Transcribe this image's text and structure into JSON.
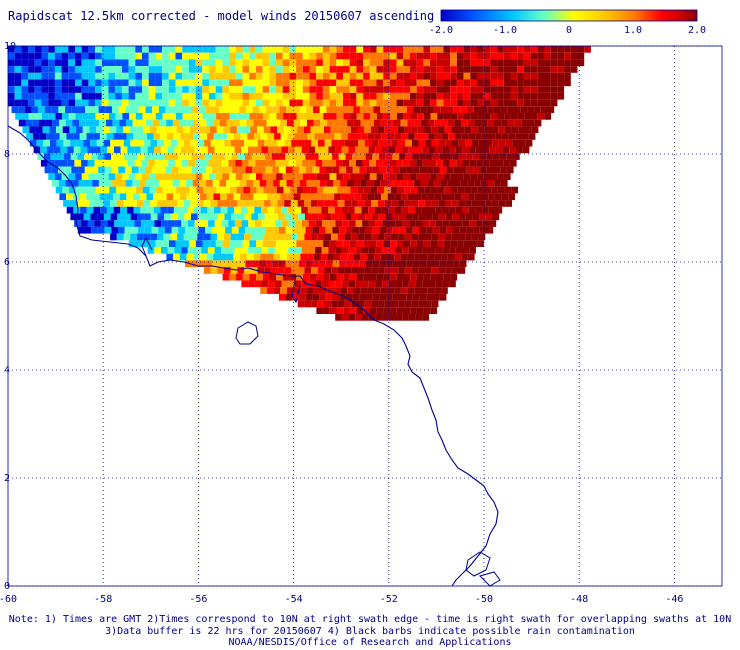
{
  "title": "Rapidscat 12.5km corrected - model winds 20150607 ascending",
  "colorbar": {
    "ticks": [
      {
        "value": -2.0,
        "label": "-2.0"
      },
      {
        "value": -1.0,
        "label": "-1.0"
      },
      {
        "value": 0,
        "label": "0"
      },
      {
        "value": 1.0,
        "label": "1.0"
      },
      {
        "value": 2.0,
        "label": "2.0"
      }
    ],
    "range": [
      -2.0,
      2.0
    ],
    "colors": [
      "#0000c8",
      "#0050ff",
      "#00c8ff",
      "#64ffc8",
      "#ffff00",
      "#ffc800",
      "#ff7800",
      "#ff0000",
      "#c80000",
      "#8b0000"
    ]
  },
  "map": {
    "lon_range": [
      -60,
      -45
    ],
    "lat_range": [
      0,
      10
    ],
    "x_ticks": [
      {
        "value": -60,
        "label": "-60"
      },
      {
        "value": -58,
        "label": "-58"
      },
      {
        "value": -56,
        "label": "-56"
      },
      {
        "value": -54,
        "label": "-54"
      },
      {
        "value": -52,
        "label": "-52"
      },
      {
        "value": -50,
        "label": "-50"
      },
      {
        "value": -48,
        "label": "-48"
      },
      {
        "value": -46,
        "label": "-46"
      }
    ],
    "y_ticks": [
      {
        "value": 0,
        "label": "0"
      },
      {
        "value": 2,
        "label": "2"
      },
      {
        "value": 4,
        "label": "4"
      },
      {
        "value": 6,
        "label": "6"
      },
      {
        "value": 8,
        "label": "8"
      },
      {
        "value": 10,
        "label": "10"
      }
    ],
    "grid": "dotted",
    "coast_color": "#00008b"
  },
  "notes": {
    "line1": "Note: 1) Times are GMT 2)Times correspond to 10N at right swath edge - time is right swath for overlapping swaths at 10N",
    "line2": "3)Data buffer is 22 hrs for 20150607 4) Black barbs indicate possible rain contamination",
    "line3": "NOAA/NESDIS/Office of Research and Applications"
  }
}
